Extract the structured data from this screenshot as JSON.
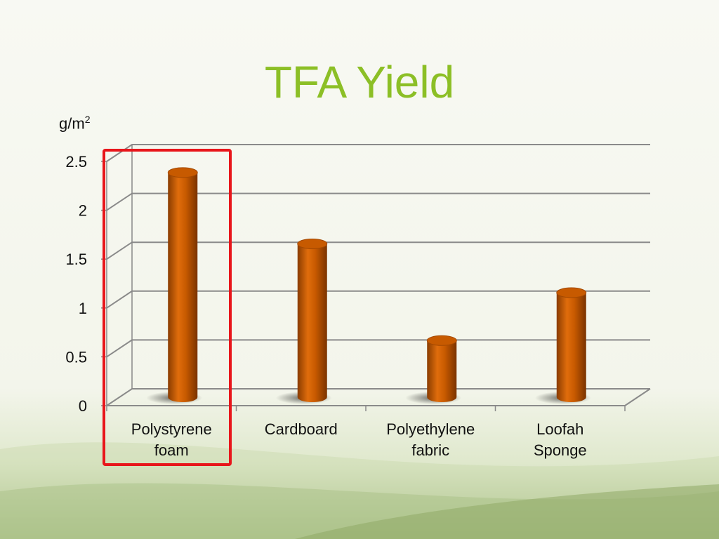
{
  "slide": {
    "title": "TFA Yield",
    "unit_base": "g/m",
    "unit_exp": "2",
    "title_color": "#8cbf26",
    "bar_color": "#c75a00",
    "highlight_color": "#e8161b",
    "highlighted_category": "Polystyrene foam"
  },
  "chart_data": {
    "type": "bar",
    "title": "TFA Yield",
    "ylabel": "g/m2",
    "xlabel": "",
    "categories": [
      "Polystyrene foam",
      "Cardboard",
      "Polyethylene fabric",
      "Loofah Sponge"
    ],
    "category_labels": [
      "Polystyrene\nfoam",
      "Cardboard",
      "Polyethylene\nfabric",
      "Loofah\nSponge"
    ],
    "values": [
      2.3,
      1.57,
      0.58,
      1.07
    ],
    "ylim": [
      0,
      2.5
    ],
    "yticks": [
      "0",
      "0.5",
      "1",
      "1.5",
      "2",
      "2.5"
    ],
    "grid": true,
    "legend": "none"
  }
}
